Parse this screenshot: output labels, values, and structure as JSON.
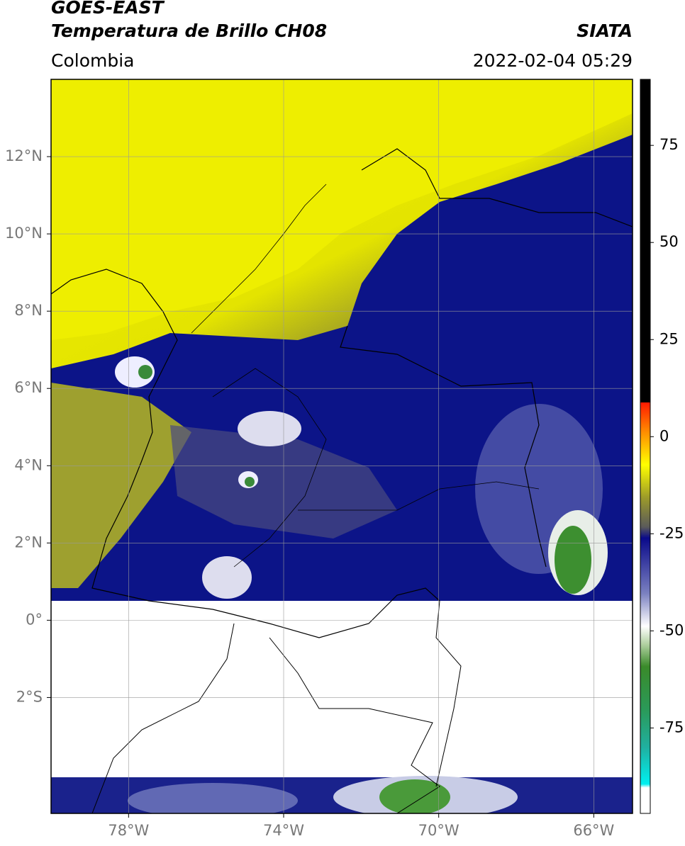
{
  "header": {
    "title": "GOES-EAST",
    "subtitle": "Temperatura de Brillo CH08",
    "source": "SIATA",
    "region": "Colombia",
    "datetime": "2022-02-04 05:29"
  },
  "map": {
    "xlim": [
      -80,
      -65
    ],
    "ylim": [
      -5,
      14
    ],
    "xticks": [
      {
        "value": -78,
        "label": "78°W"
      },
      {
        "value": -74,
        "label": "74°W"
      },
      {
        "value": -70,
        "label": "70°W"
      },
      {
        "value": -66,
        "label": "66°W"
      }
    ],
    "yticks": [
      {
        "value": 12,
        "label": "12°N"
      },
      {
        "value": 10,
        "label": "10°N"
      },
      {
        "value": 8,
        "label": "8°N"
      },
      {
        "value": 6,
        "label": "6°N"
      },
      {
        "value": 4,
        "label": "4°N"
      },
      {
        "value": 2,
        "label": "2°N"
      },
      {
        "value": 0,
        "label": "0°"
      },
      {
        "value": -2,
        "label": "2°S"
      }
    ],
    "grid": true
  },
  "colorbar": {
    "lim": [
      -97,
      92
    ],
    "ticks": [
      75,
      50,
      25,
      0,
      -25,
      -50,
      -75
    ]
  }
}
